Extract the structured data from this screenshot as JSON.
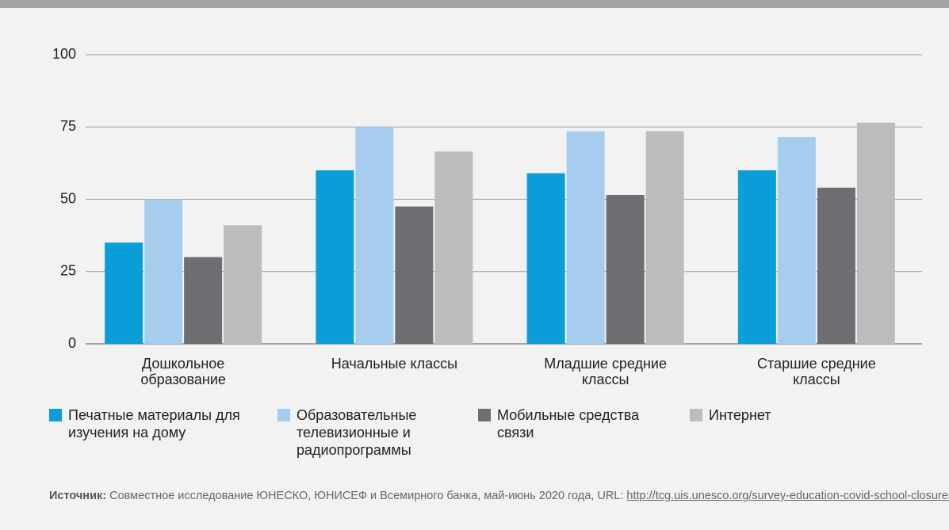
{
  "chart_data": {
    "type": "bar",
    "categories": [
      "Дошкольное образование",
      "Начальные классы",
      "Младшие средние классы",
      "Старшие средние классы"
    ],
    "series": [
      {
        "name": "Печатные материалы для изучения на дому",
        "color": "#0a9ed9",
        "values": [
          35,
          60,
          59,
          60
        ]
      },
      {
        "name": "Образовательные телевизионные и радиопрограммы",
        "color": "#a6cdee",
        "values": [
          50,
          75,
          73.5,
          71.5
        ]
      },
      {
        "name": "Мобильные средства связи",
        "color": "#6d6e71",
        "values": [
          30,
          47.5,
          51.5,
          54
        ]
      },
      {
        "name": "Интернет",
        "color": "#bbbcbe",
        "values": [
          41,
          66.5,
          73.5,
          76.5
        ]
      }
    ],
    "ylim": [
      0,
      100
    ],
    "yticks": [
      0,
      25,
      50,
      75,
      100
    ],
    "grid": true
  },
  "source": {
    "label": "Источник:",
    "text": "Совместное исследование ЮНЕСКО, ЮНИСЕФ и Всемирного банка, май-июнь 2020 года, URL: ",
    "url": "http://tcg.uis.unesco.org/survey-education-covid-school-closures",
    "suffix": "."
  }
}
